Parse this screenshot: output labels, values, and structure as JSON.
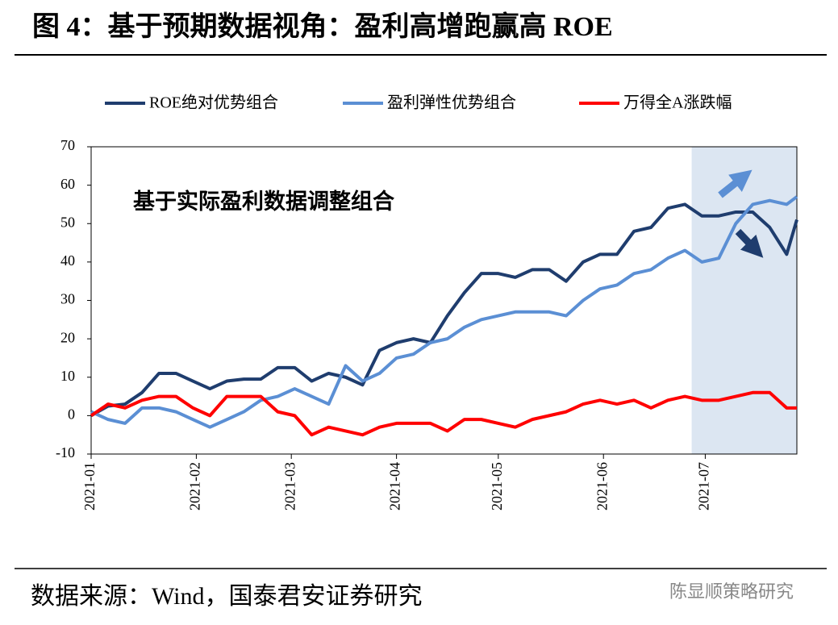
{
  "chart_data": {
    "type": "line",
    "title": "图 4：基于预期数据视角：盈利高增跑赢高 ROE",
    "annotation": "基于实际盈利数据调整组合",
    "source": "数据来源：Wind，国泰君安证券研究",
    "watermark": "陈显顺策略研究",
    "x": [
      0,
      5,
      10,
      15,
      20,
      25,
      30,
      35,
      40,
      45,
      50,
      55,
      60,
      65,
      70,
      75,
      80,
      85,
      90,
      95,
      100,
      105,
      110,
      115,
      120,
      125,
      130,
      135,
      140,
      145,
      150,
      155,
      160,
      165,
      170,
      175,
      180,
      185,
      190,
      195,
      200,
      205,
      208
    ],
    "series": [
      {
        "name": "ROE绝对优势组合",
        "color": "#1f3d6e",
        "values": [
          0,
          2.5,
          3,
          6,
          11,
          11,
          9,
          7,
          9,
          9.5,
          9.5,
          12.5,
          12.5,
          9,
          11,
          10,
          8,
          17,
          19,
          20,
          19,
          26,
          32,
          37,
          37,
          36,
          38,
          38,
          35,
          40,
          42,
          42,
          48,
          49,
          54,
          55,
          52,
          52,
          53,
          53,
          49,
          42,
          51
        ]
      },
      {
        "name": "盈利弹性优势组合",
        "color": "#5b8fd4",
        "values": [
          1,
          -1,
          -2,
          2,
          2,
          1,
          -1,
          -3,
          -1,
          1,
          4,
          5,
          7,
          5,
          3,
          13,
          9,
          11,
          15,
          16,
          19,
          20,
          23,
          25,
          26,
          27,
          27,
          27,
          26,
          30,
          33,
          34,
          37,
          38,
          41,
          43,
          40,
          41,
          50,
          55,
          56,
          55,
          57
        ]
      },
      {
        "name": "万得全A涨跌幅",
        "color": "#ff0000",
        "values": [
          0,
          3,
          2,
          4,
          5,
          5,
          2,
          0,
          5,
          5,
          5,
          1,
          0,
          -5,
          -3,
          -4,
          -5,
          -3,
          -2,
          -2,
          -2,
          -4,
          -1,
          -1,
          -2,
          -3,
          -1,
          0,
          1,
          3,
          4,
          3,
          4,
          2,
          4,
          5,
          4,
          4,
          5,
          6,
          6,
          2,
          2
        ]
      }
    ],
    "shaded_range": [
      177,
      208
    ],
    "shade_color": "#dce6f2",
    "xlim": [
      0,
      208
    ],
    "xticks": [
      {
        "value": 0,
        "label": "2021-01"
      },
      {
        "value": 31,
        "label": "2021-02"
      },
      {
        "value": 59,
        "label": "2021-03"
      },
      {
        "value": 90,
        "label": "2021-04"
      },
      {
        "value": 120,
        "label": "2021-05"
      },
      {
        "value": 151,
        "label": "2021-06"
      },
      {
        "value": 181,
        "label": "2021-07"
      }
    ],
    "ylim": [
      -10,
      70
    ],
    "yticks": [
      -10,
      0,
      10,
      20,
      30,
      40,
      50,
      60,
      70
    ]
  }
}
